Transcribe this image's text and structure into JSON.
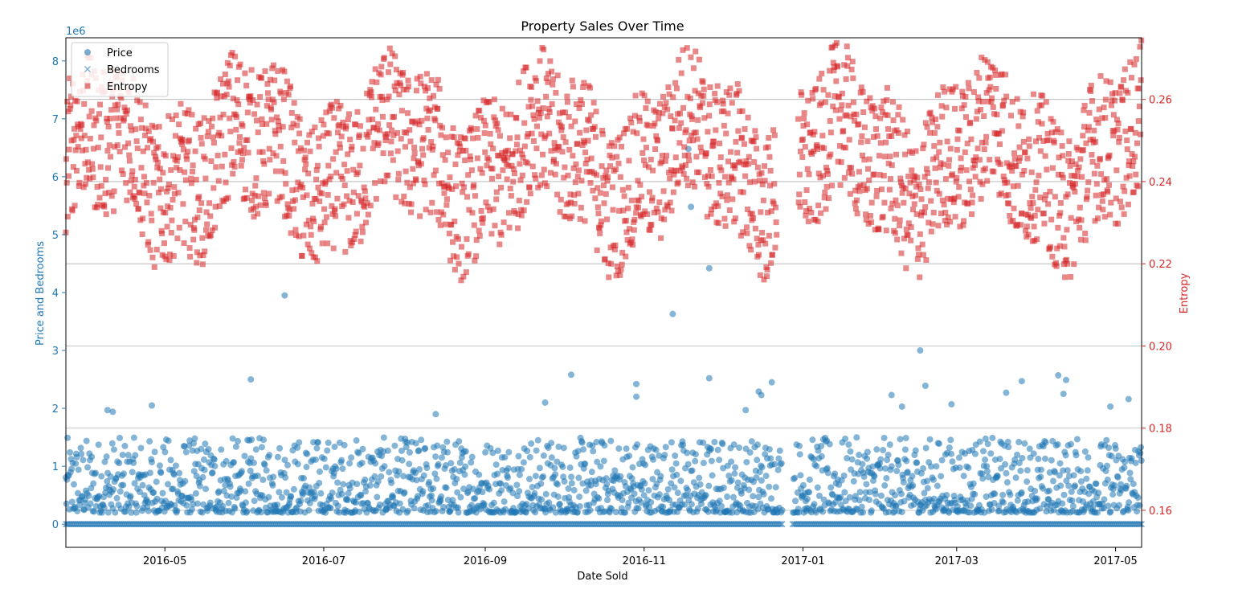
{
  "chart_data": {
    "type": "scatter",
    "title": "Property Sales Over Time",
    "xlabel": "Date Sold",
    "ylabel_left": "Price and Bedrooms",
    "ylabel_right": "Entropy",
    "left_axis_offset_text": "1e6",
    "legend": {
      "placement": "top-left",
      "entries": [
        "Price",
        "Bedrooms",
        "Entropy"
      ]
    },
    "grid": {
      "horizontal": true,
      "axis": "right"
    },
    "colors": {
      "left_axis": "#1f77b4",
      "right_axis": "#d62728",
      "price": "#1f77b4",
      "bedrooms": "#1f77b4",
      "entropy": "#d62728"
    },
    "x_range": [
      "2016-03-24",
      "2017-05-11"
    ],
    "x_ticks": [
      "2016-05",
      "2016-07",
      "2016-09",
      "2016-11",
      "2017-01",
      "2017-03",
      "2017-05"
    ],
    "y_left_range": [
      -400000,
      8400000
    ],
    "y_left_ticks": [
      "0",
      "1",
      "2",
      "3",
      "4",
      "5",
      "6",
      "7",
      "8"
    ],
    "y_right_range": [
      0.151,
      0.275
    ],
    "y_right_ticks": [
      "0.16",
      "0.18",
      "0.20",
      "0.22",
      "0.24",
      "0.26"
    ],
    "gap": [
      "2016-12-24",
      "2016-12-28"
    ],
    "price_outliers": [
      {
        "x": "2016-06-16",
        "y": 3950000
      },
      {
        "x": "2016-11-12",
        "y": 3630000
      },
      {
        "x": "2016-11-26",
        "y": 4420000
      },
      {
        "x": "2016-11-19",
        "y": 5480000
      },
      {
        "x": "2016-11-18",
        "y": 6480000
      },
      {
        "x": "2017-02-15",
        "y": 3000000
      },
      {
        "x": "2016-06-03",
        "y": 2500000
      },
      {
        "x": "2016-10-04",
        "y": 2580000
      },
      {
        "x": "2016-12-20",
        "y": 2450000
      },
      {
        "x": "2016-11-26",
        "y": 2520000
      },
      {
        "x": "2017-02-17",
        "y": 2390000
      },
      {
        "x": "2017-03-26",
        "y": 2470000
      },
      {
        "x": "2017-04-09",
        "y": 2570000
      },
      {
        "x": "2017-04-12",
        "y": 2490000
      },
      {
        "x": "2016-04-26",
        "y": 2050000
      },
      {
        "x": "2016-04-09",
        "y": 1970000
      },
      {
        "x": "2016-04-11",
        "y": 1940000
      },
      {
        "x": "2016-10-29",
        "y": 2420000
      },
      {
        "x": "2016-10-29",
        "y": 2200000
      },
      {
        "x": "2016-12-15",
        "y": 2290000
      },
      {
        "x": "2016-12-16",
        "y": 2230000
      },
      {
        "x": "2017-02-04",
        "y": 2230000
      },
      {
        "x": "2017-02-27",
        "y": 2070000
      },
      {
        "x": "2017-03-20",
        "y": 2270000
      },
      {
        "x": "2017-04-11",
        "y": 2250000
      },
      {
        "x": "2017-05-06",
        "y": 2160000
      },
      {
        "x": "2016-09-24",
        "y": 2100000
      },
      {
        "x": "2016-08-13",
        "y": 1900000
      },
      {
        "x": "2016-12-10",
        "y": 1970000
      },
      {
        "x": "2017-02-08",
        "y": 2030000
      },
      {
        "x": "2017-04-29",
        "y": 2030000
      }
    ],
    "price_band": {
      "typical_min": 200000,
      "typical_max": 1500000,
      "typical_median": 550000
    },
    "bedrooms_value": 0,
    "entropy_typical_range": [
      0.225,
      0.265
    ]
  }
}
